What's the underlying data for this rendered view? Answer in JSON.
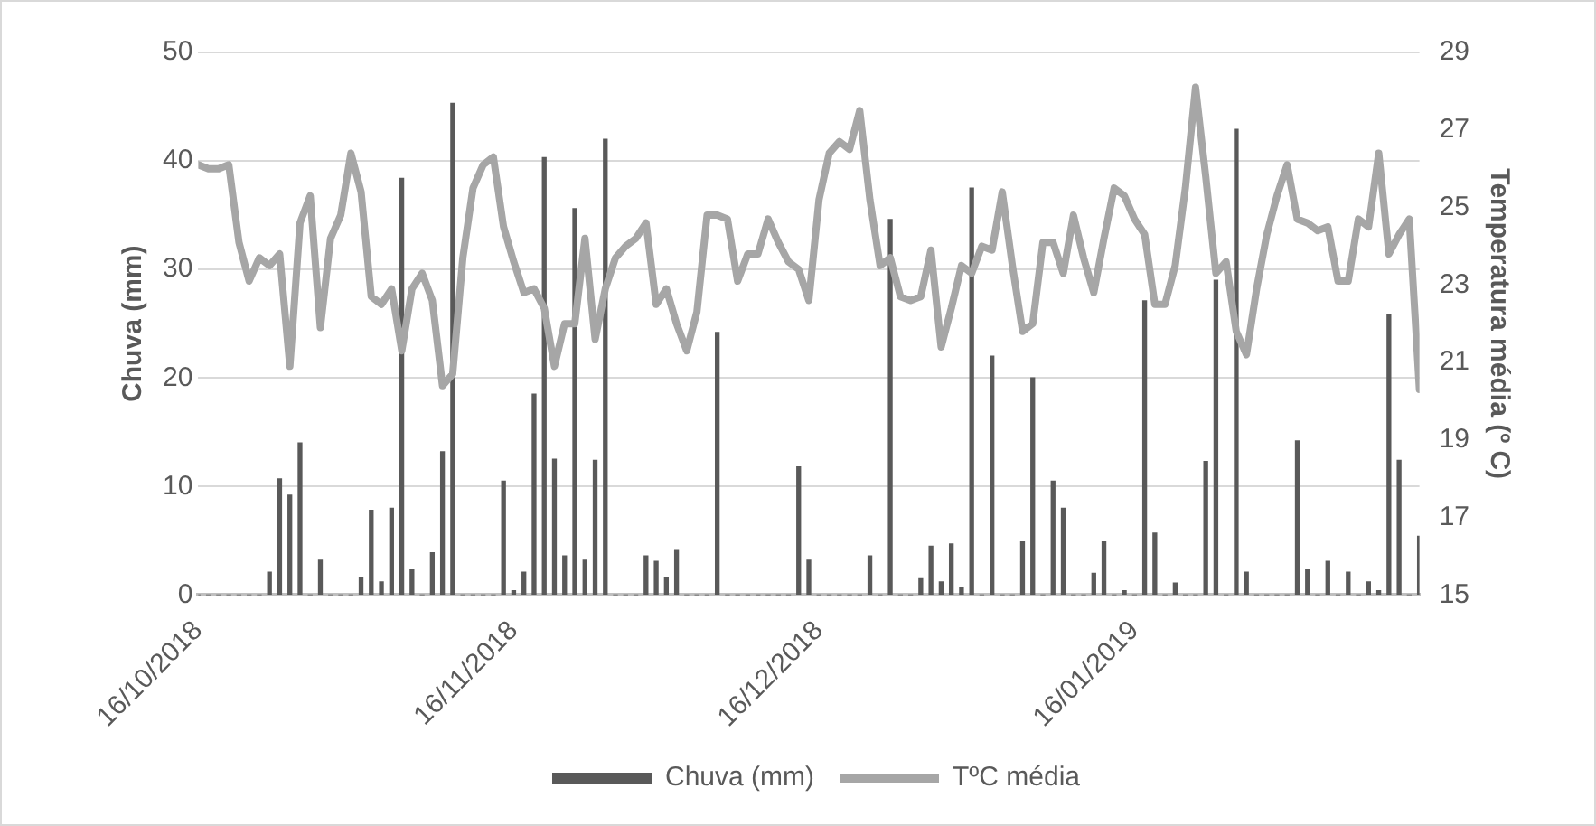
{
  "chart_data": {
    "type": "bar",
    "ylabel": "Chuva (mm)",
    "y2label": "Temperatura média (º C)",
    "x": [
      "2018-10-16",
      "2018-10-17",
      "2018-10-18",
      "2018-10-19",
      "2018-10-20",
      "2018-10-21",
      "2018-10-22",
      "2018-10-23",
      "2018-10-24",
      "2018-10-25",
      "2018-10-26",
      "2018-10-27",
      "2018-10-28",
      "2018-10-29",
      "2018-10-30",
      "2018-10-31",
      "2018-11-01",
      "2018-11-02",
      "2018-11-03",
      "2018-11-04",
      "2018-11-05",
      "2018-11-06",
      "2018-11-07",
      "2018-11-08",
      "2018-11-09",
      "2018-11-10",
      "2018-11-11",
      "2018-11-12",
      "2018-11-13",
      "2018-11-14",
      "2018-11-15",
      "2018-11-16",
      "2018-11-17",
      "2018-11-18",
      "2018-11-19",
      "2018-11-20",
      "2018-11-21",
      "2018-11-22",
      "2018-11-23",
      "2018-11-24",
      "2018-11-25",
      "2018-11-26",
      "2018-11-27",
      "2018-11-28",
      "2018-11-29",
      "2018-11-30",
      "2018-12-01",
      "2018-12-02",
      "2018-12-03",
      "2018-12-04",
      "2018-12-05",
      "2018-12-06",
      "2018-12-07",
      "2018-12-08",
      "2018-12-09",
      "2018-12-10",
      "2018-12-11",
      "2018-12-12",
      "2018-12-13",
      "2018-12-14",
      "2018-12-15",
      "2018-12-16",
      "2018-12-17",
      "2018-12-18",
      "2018-12-19",
      "2018-12-20",
      "2018-12-21",
      "2018-12-22",
      "2018-12-23",
      "2018-12-24",
      "2018-12-25",
      "2018-12-26",
      "2018-12-27",
      "2018-12-28",
      "2018-12-29",
      "2018-12-30",
      "2018-12-31",
      "2019-01-01",
      "2019-01-02",
      "2019-01-03",
      "2019-01-04",
      "2019-01-05",
      "2019-01-06",
      "2019-01-07",
      "2019-01-08",
      "2019-01-09",
      "2019-01-10",
      "2019-01-11",
      "2019-01-12",
      "2019-01-13",
      "2019-01-14",
      "2019-01-15",
      "2019-01-16",
      "2019-01-17",
      "2019-01-18",
      "2019-01-19",
      "2019-01-20",
      "2019-01-21",
      "2019-01-22",
      "2019-01-23",
      "2019-01-24",
      "2019-01-25",
      "2019-01-26",
      "2019-01-27",
      "2019-01-28",
      "2019-01-29",
      "2019-01-30",
      "2019-01-31",
      "2019-02-01",
      "2019-02-02",
      "2019-02-03",
      "2019-02-04",
      "2019-02-05",
      "2019-02-06",
      "2019-02-07",
      "2019-02-08",
      "2019-02-09",
      "2019-02-10",
      "2019-02-11",
      "2019-02-12",
      "2019-02-13"
    ],
    "series": [
      {
        "name": "Chuva (mm)",
        "color": "#595959",
        "values": [
          0,
          0,
          0,
          0,
          0,
          0,
          0,
          2.1,
          10.7,
          9.2,
          14.0,
          0,
          3.2,
          0,
          0,
          0,
          1.6,
          7.8,
          1.2,
          8.0,
          38.4,
          2.3,
          0,
          3.9,
          13.2,
          45.3,
          0,
          0,
          0,
          0,
          10.5,
          0.4,
          2.1,
          18.5,
          40.3,
          12.5,
          3.6,
          35.6,
          3.2,
          12.4,
          42.0,
          0,
          0,
          0,
          3.6,
          3.1,
          1.6,
          4.1,
          0,
          0,
          0,
          24.2,
          0,
          0,
          0,
          0,
          0,
          0,
          0,
          11.8,
          3.2,
          0,
          0,
          0,
          0,
          0,
          3.6,
          0,
          34.6,
          0,
          0,
          1.5,
          4.5,
          1.2,
          4.7,
          0.7,
          37.5,
          0,
          22.0,
          0,
          0,
          4.9,
          20.0,
          0,
          10.5,
          8.0,
          0,
          0,
          2.0,
          4.9,
          0,
          0.4,
          0,
          27.1,
          5.7,
          0,
          1.1,
          0,
          0,
          12.3,
          29.0,
          0,
          42.9,
          2.1,
          0,
          0,
          0,
          0,
          14.2,
          2.3,
          0,
          3.1,
          0,
          2.1,
          0,
          1.2,
          0.4,
          25.8,
          12.4,
          0,
          5.4
        ]
      },
      {
        "name": "TºC média",
        "type": "line",
        "axis": "y2",
        "color": "#a6a6a6",
        "values": [
          26.1,
          26.0,
          26.0,
          26.1,
          24.1,
          23.1,
          23.7,
          23.5,
          23.8,
          20.9,
          24.6,
          25.3,
          21.9,
          24.2,
          24.8,
          26.4,
          25.4,
          22.7,
          22.5,
          22.9,
          21.3,
          22.9,
          23.3,
          22.6,
          20.4,
          20.7,
          23.7,
          25.5,
          26.1,
          26.3,
          24.5,
          23.6,
          22.8,
          22.9,
          22.4,
          20.9,
          22.0,
          22.0,
          24.2,
          21.6,
          22.9,
          23.7,
          24.0,
          24.2,
          24.6,
          22.5,
          22.9,
          22.0,
          21.3,
          22.3,
          24.8,
          24.8,
          24.7,
          23.1,
          23.8,
          23.8,
          24.7,
          24.1,
          23.6,
          23.4,
          22.6,
          25.2,
          26.4,
          26.7,
          26.5,
          27.5,
          25.2,
          23.5,
          23.7,
          22.7,
          22.6,
          22.7,
          23.9,
          21.4,
          22.4,
          23.5,
          23.3,
          24.0,
          23.9,
          25.4,
          23.5,
          21.8,
          22.0,
          24.1,
          24.1,
          23.3,
          24.8,
          23.7,
          22.8,
          24.2,
          25.5,
          25.3,
          24.7,
          24.3,
          22.5,
          22.5,
          23.5,
          25.5,
          28.1,
          25.8,
          23.3,
          23.6,
          21.8,
          21.2,
          22.9,
          24.3,
          25.3,
          26.1,
          24.7,
          24.6,
          24.4,
          24.5,
          23.1,
          23.1,
          24.7,
          24.5,
          26.4,
          23.8,
          24.3,
          24.7,
          20.3
        ]
      }
    ],
    "xlim": [
      "2018-10-16",
      "2019-02-13"
    ],
    "xticks": [
      {
        "value": "2018-10-16",
        "label": "16/10/2018"
      },
      {
        "value": "2018-11-16",
        "label": "16/11/2018"
      },
      {
        "value": "2018-12-16",
        "label": "16/12/2018"
      },
      {
        "value": "2019-01-16",
        "label": "16/01/2019"
      }
    ],
    "ylim": [
      0,
      50
    ],
    "yticks": [
      0,
      10,
      20,
      30,
      40,
      50
    ],
    "y2lim": [
      15,
      29
    ],
    "y2ticks": [
      15,
      17,
      19,
      21,
      23,
      25,
      27,
      29
    ],
    "grid": "y",
    "legend": "bottom",
    "marker": "none"
  }
}
